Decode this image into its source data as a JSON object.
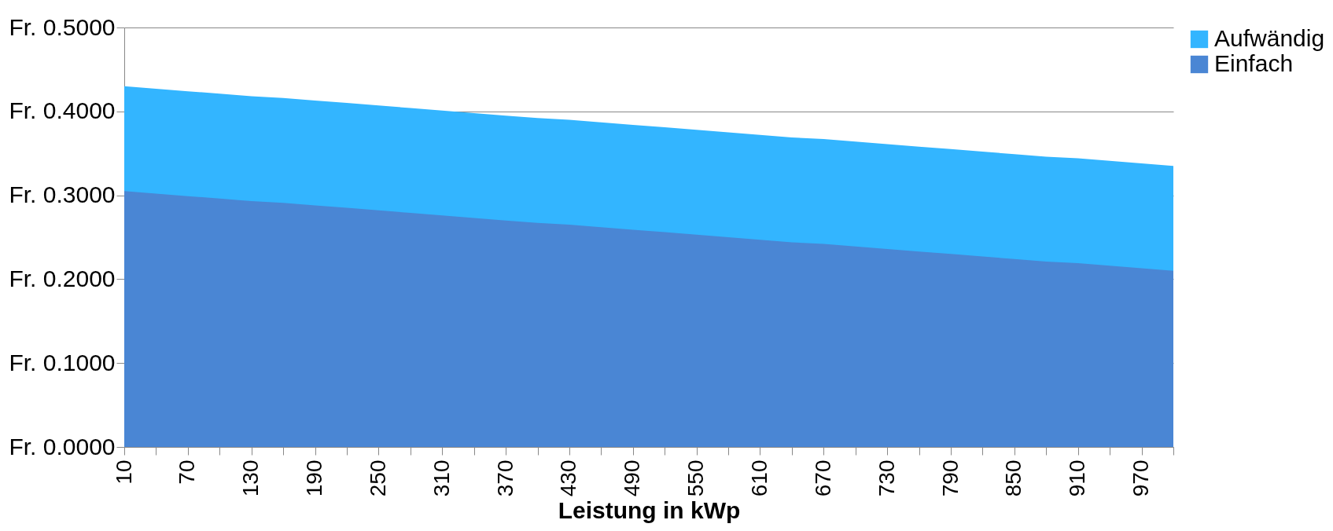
{
  "chart_data": {
    "type": "area",
    "xlabel": "Leistung in kWp",
    "categories": [
      "10",
      null,
      "70",
      null,
      "130",
      null,
      "190",
      null,
      "250",
      null,
      "310",
      null,
      "370",
      null,
      "430",
      null,
      "490",
      null,
      "550",
      null,
      "610",
      null,
      "670",
      null,
      "730",
      null,
      "790",
      null,
      "850",
      null,
      "910",
      null,
      "970",
      null
    ],
    "series": [
      {
        "name": "Aufwändig",
        "color": "#33b5ff",
        "values": [
          0.43,
          0.427,
          0.424,
          0.421,
          0.418,
          0.416,
          0.413,
          0.41,
          0.407,
          0.404,
          0.401,
          0.398,
          0.395,
          0.392,
          0.39,
          0.387,
          0.384,
          0.381,
          0.378,
          0.375,
          0.372,
          0.369,
          0.367,
          0.364,
          0.361,
          0.358,
          0.355,
          0.352,
          0.349,
          0.346,
          0.344,
          0.341,
          0.338,
          0.335
        ]
      },
      {
        "name": "Einfach",
        "color": "#4a86d4",
        "values": [
          0.305,
          0.302,
          0.299,
          0.296,
          0.293,
          0.291,
          0.288,
          0.285,
          0.282,
          0.279,
          0.276,
          0.273,
          0.27,
          0.267,
          0.265,
          0.262,
          0.259,
          0.256,
          0.253,
          0.25,
          0.247,
          0.244,
          0.242,
          0.239,
          0.236,
          0.233,
          0.23,
          0.227,
          0.224,
          0.221,
          0.219,
          0.216,
          0.213,
          0.21
        ]
      }
    ],
    "ylim": [
      0,
      0.5
    ],
    "yticks": [
      {
        "value": 0,
        "label": "Fr. 0.0000"
      },
      {
        "value": 0.1,
        "label": "Fr. 0.1000"
      },
      {
        "value": 0.2,
        "label": "Fr. 0.2000"
      },
      {
        "value": 0.3,
        "label": "Fr. 0.3000"
      },
      {
        "value": 0.4,
        "label": "Fr. 0.4000"
      },
      {
        "value": 0.5,
        "label": "Fr. 0.5000"
      }
    ],
    "grid": "y",
    "legend": "right"
  }
}
